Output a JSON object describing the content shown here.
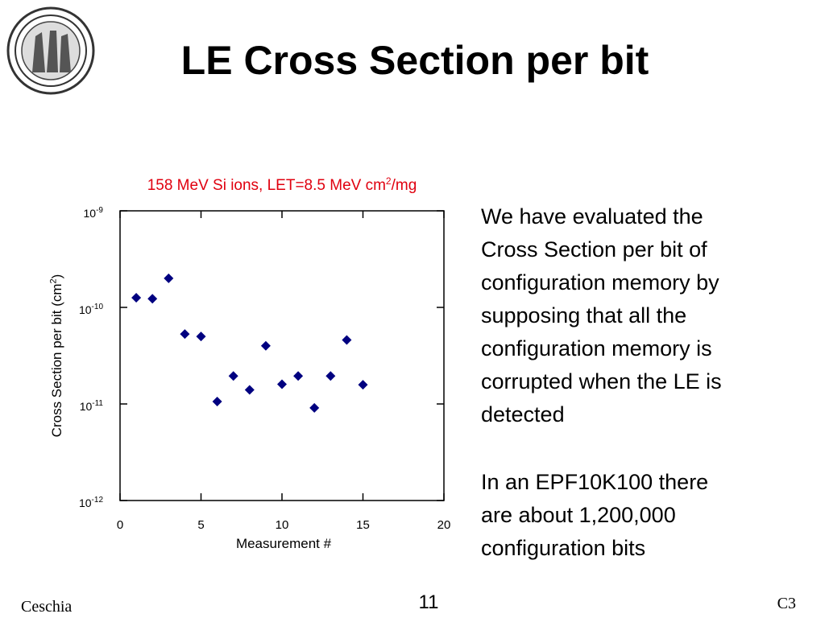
{
  "header": {
    "title": "LE Cross Section per bit"
  },
  "body": {
    "paragraphs": [
      [
        "We have evaluated the",
        "Cross Section per bit of",
        "configuration memory by",
        "supposing that all the",
        "configuration memory is",
        "corrupted when the LE is",
        "detected"
      ],
      [
        "In an EPF10K100 there",
        "are about 1,200,000",
        "configuration bits"
      ]
    ]
  },
  "footer": {
    "left": "Ceschia",
    "center": "11",
    "right": "C3"
  },
  "chart_data": {
    "type": "scatter",
    "title": {
      "text": "158 MeV Si ions, LET=8.5 MeV cm",
      "exponent": "2",
      "tail": "/mg"
    },
    "x_label": "Measurement #",
    "y_label": {
      "text": "Cross Section per bit (cm",
      "exponent": "2",
      "tail": ")"
    },
    "x": [
      1,
      2,
      3,
      4,
      5,
      6,
      7,
      8,
      9,
      10,
      11,
      12,
      13,
      14,
      15
    ],
    "series": [
      {
        "color": "#000080",
        "values": [
          1.26e-10,
          1.23e-10,
          2e-10,
          5.3e-11,
          5e-11,
          1.06e-11,
          1.95e-11,
          1.4e-11,
          4e-11,
          1.6e-11,
          1.95e-11,
          9.1e-12,
          1.95e-11,
          4.6e-11,
          1.58e-11
        ]
      }
    ],
    "xlim": [
      0,
      20
    ],
    "xticks": [
      0,
      5,
      10,
      15,
      20
    ],
    "ylim": [
      1e-12,
      1e-09
    ],
    "log_y": true,
    "yticks": [
      {
        "value": 1e-12,
        "label": "10",
        "exponent": "-12"
      },
      {
        "value": 1e-11,
        "label": "10",
        "exponent": "-11"
      },
      {
        "value": 1e-10,
        "label": "10",
        "exponent": "-10"
      },
      {
        "value": 1e-09,
        "label": "10",
        "exponent": "-9"
      }
    ]
  }
}
